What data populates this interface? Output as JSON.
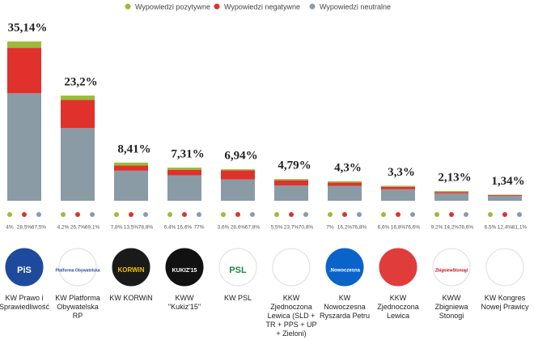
{
  "chart_data": {
    "type": "stacked-share-bar",
    "categories": [
      "KW Prawo i Sprawiedliwość",
      "KW Platforma Obywatelska RP",
      "KW KORWiN",
      "KWW \"Kukiz'15\"",
      "KW PSL",
      "KKW Zjednoczona Lewica (SLD + TR + PPS + UP + Zieloni)",
      "KW Nowoczesna Ryszarda Petru",
      "KKW Zjednoczona Lewica",
      "KWW Zbigniewa Stonogi",
      "KW Kongres Nowej Prawicy"
    ],
    "values": [
      35.14,
      23.2,
      8.41,
      7.31,
      6.94,
      4.79,
      4.3,
      3.3,
      2.13,
      1.34
    ],
    "value_labels": [
      "35,14%",
      "23,2%",
      "8,41%",
      "7,31%",
      "6,94%",
      "4,79%",
      "4,3%",
      "3,3%",
      "2,13%",
      "1,34%"
    ],
    "series": [
      {
        "name": "Wypowiedzi pozytywne",
        "color": "#9bbb3b",
        "values": [
          4,
          4.2,
          7.8,
          6.4,
          3.6,
          5.5,
          7,
          6.6,
          9.2,
          6.5
        ],
        "value_labels": [
          "4%",
          "4,2%",
          "7,8%",
          "6,4%",
          "3,6%",
          "5,5%",
          "7%",
          "6,6%",
          "9,2%",
          "6,5%"
        ]
      },
      {
        "name": "Wypowiedzi negatywne",
        "color": "#e0312c",
        "values": [
          28.5,
          26.7,
          13.5,
          16.6,
          28.6,
          23.7,
          16.2,
          16.8,
          14.2,
          12.4
        ],
        "value_labels": [
          "28,5%",
          "26,7%",
          "13,5%",
          "16,6%",
          "28,6%",
          "23,7%",
          "16,2%",
          "16,8%",
          "14,2%",
          "12,4%"
        ]
      },
      {
        "name": "Wypowiedzi neutralne",
        "color": "#8a9ba6",
        "values": [
          67.5,
          69.1,
          78.8,
          77,
          67.8,
          70.8,
          76.8,
          76.6,
          76.6,
          81.1
        ],
        "value_labels": [
          "67,5%",
          "69,1%",
          "78,8%",
          "77%",
          "67,8%",
          "70,8%",
          "76,8%",
          "76,6%",
          "76,6%",
          "81,1%"
        ]
      }
    ],
    "logos": [
      "PiS",
      "Platforma Obywatelska",
      "KORWiN",
      "KUKIZ'15",
      "PSL",
      ".Nowoczesna",
      "ZbigniewStonogi"
    ]
  }
}
